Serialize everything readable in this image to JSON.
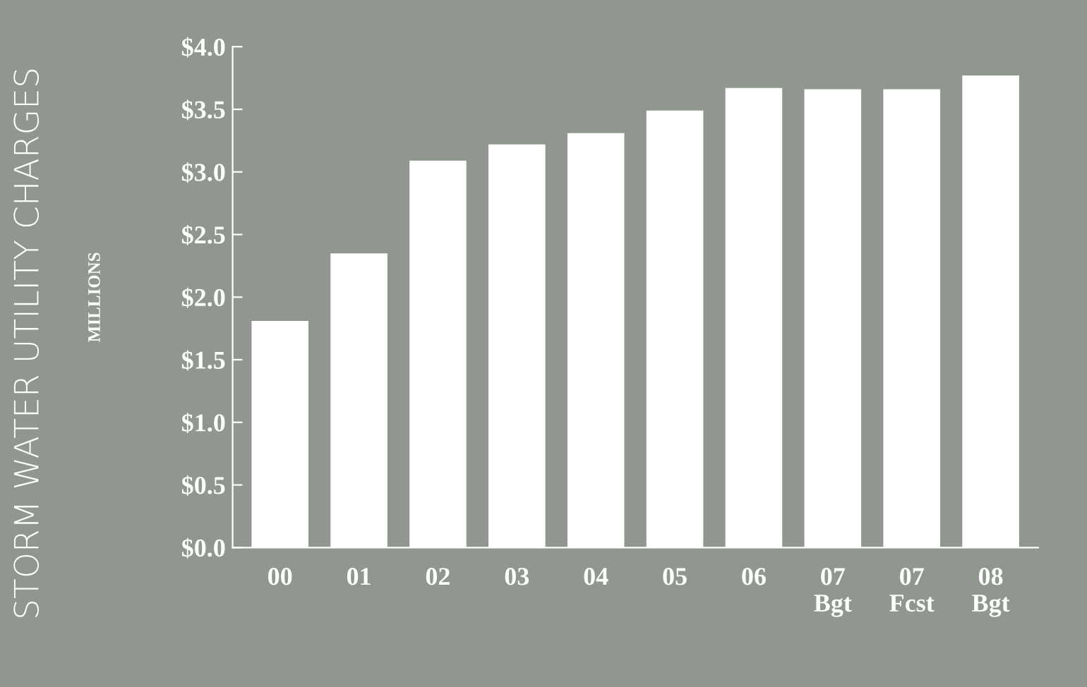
{
  "chart_data": {
    "type": "bar",
    "title": "STORM WATER UTILITY CHARGES",
    "ylabel": "MILLIONS",
    "categories": [
      "00",
      "01",
      "02",
      "03",
      "04",
      "05",
      "06",
      "07\nBgt",
      "07\nFcst",
      "08\nBgt"
    ],
    "values": [
      1.81,
      2.35,
      3.09,
      3.22,
      3.31,
      3.49,
      3.67,
      3.66,
      3.66,
      3.77
    ],
    "color": "#ffffff",
    "ylim": [
      0,
      4
    ],
    "yticks": [
      {
        "value": 0,
        "label": "$0.0"
      },
      {
        "value": 0.5,
        "label": "$0.5"
      },
      {
        "value": 1,
        "label": "$1.0"
      },
      {
        "value": 1.5,
        "label": "$1.5"
      },
      {
        "value": 2,
        "label": "$2.0"
      },
      {
        "value": 2.5,
        "label": "$2.5"
      },
      {
        "value": 3,
        "label": "$3.0"
      },
      {
        "value": 3.5,
        "label": "$3.5"
      },
      {
        "value": 4,
        "label": "$4.0"
      }
    ],
    "grid": false
  }
}
